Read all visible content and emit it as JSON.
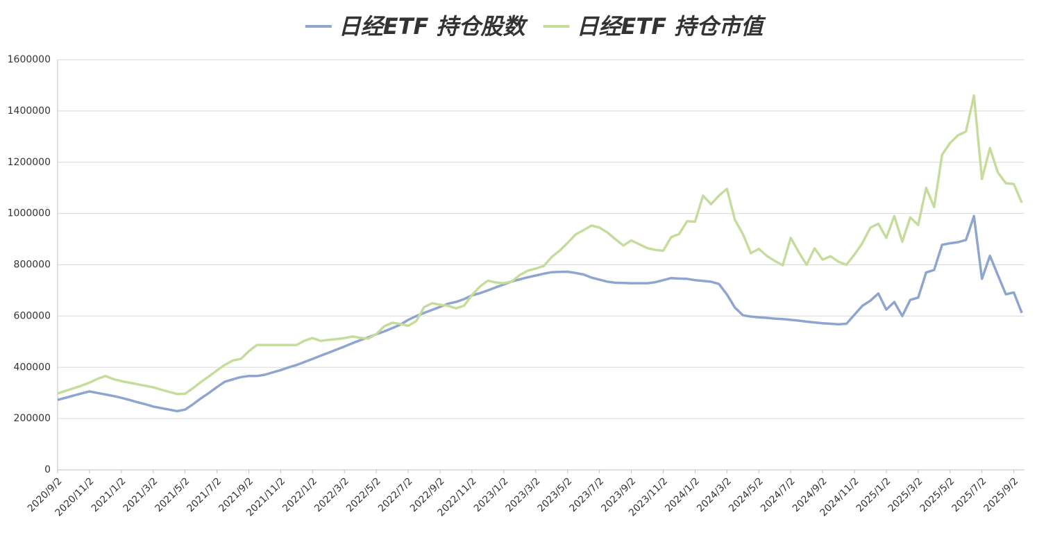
{
  "chart_data": {
    "type": "line",
    "categories": [
      "2020/9/2",
      null,
      null,
      null,
      "2020/11/2",
      null,
      null,
      null,
      "2021/1/2",
      null,
      null,
      null,
      "2021/3/2",
      null,
      null,
      null,
      "2021/5/2",
      null,
      null,
      null,
      "2021/7/2",
      null,
      null,
      null,
      "2021/9/2",
      null,
      null,
      null,
      "2021/11/2",
      null,
      null,
      null,
      "2022/1/2",
      null,
      null,
      null,
      "2022/3/2",
      null,
      null,
      null,
      "2022/5/2",
      null,
      null,
      null,
      "2022/7/2",
      null,
      null,
      null,
      "2022/9/2",
      null,
      null,
      null,
      "2022/11/2",
      null,
      null,
      null,
      "2023/1/2",
      null,
      null,
      null,
      "2023/3/2",
      null,
      null,
      null,
      "2023/5/2",
      null,
      null,
      null,
      "2023/7/2",
      null,
      null,
      null,
      "2023/9/2",
      null,
      null,
      null,
      "2023/11/2",
      null,
      null,
      null,
      "2024/1/2",
      null,
      null,
      null,
      "2024/3/2",
      null,
      null,
      null,
      "2024/5/2",
      null,
      null,
      null,
      "2024/7/2",
      null,
      null,
      null,
      "2024/9/2",
      null,
      null,
      null,
      "2024/11/2",
      null,
      null,
      null,
      "2025/1/2",
      null,
      null,
      null,
      "2025/3/2",
      null,
      null,
      null,
      "2025/5/2",
      null,
      null,
      null,
      "2025/7/2",
      null,
      null,
      null,
      "2025/9/2",
      null
    ],
    "series": [
      {
        "name": "日经ETF 持仓股数",
        "color": "#8ea5cf",
        "values": [
          273000,
          281000,
          290000,
          298000,
          306000,
          300000,
          294000,
          288000,
          281000,
          273000,
          264000,
          256000,
          247000,
          241000,
          235000,
          229000,
          235000,
          256000,
          279000,
          300000,
          323000,
          344000,
          353000,
          362000,
          366000,
          366000,
          371000,
          380000,
          389000,
          400000,
          409000,
          421000,
          433000,
          445000,
          457000,
          469000,
          481000,
          494000,
          506000,
          517000,
          529000,
          540000,
          553000,
          566000,
          585000,
          600000,
          612000,
          624000,
          636000,
          648000,
          655000,
          666000,
          681000,
          689000,
          700000,
          712000,
          723000,
          735000,
          743000,
          751000,
          758000,
          765000,
          771000,
          772000,
          773000,
          768000,
          762000,
          750000,
          742000,
          734000,
          730000,
          729000,
          728000,
          728000,
          728000,
          732000,
          740000,
          748000,
          746000,
          745000,
          740000,
          737000,
          734000,
          725000,
          684000,
          633000,
          603000,
          598000,
          595000,
          593000,
          590000,
          588000,
          585000,
          582000,
          578000,
          575000,
          572000,
          570000,
          568000,
          570000,
          605000,
          640000,
          660000,
          688000,
          625000,
          655000,
          600000,
          663000,
          672000,
          770000,
          780000,
          878000,
          884000,
          888000,
          897000,
          990000,
          745000,
          835000,
          760000,
          685000,
          692000,
          612000
        ]
      },
      {
        "name": "日经ETF 持仓市值",
        "color": "#c6dc9c",
        "values": [
          298000,
          308000,
          318000,
          328000,
          340000,
          355000,
          366000,
          354000,
          346000,
          340000,
          334000,
          328000,
          322000,
          313000,
          304000,
          296000,
          297000,
          319000,
          343000,
          365000,
          388000,
          410000,
          427000,
          433000,
          463000,
          487000,
          487000,
          487000,
          487000,
          487000,
          487000,
          504000,
          514000,
          503000,
          507000,
          510000,
          514000,
          520000,
          515000,
          512000,
          530000,
          560000,
          574000,
          569000,
          562000,
          580000,
          635000,
          650000,
          644000,
          640000,
          630000,
          640000,
          682000,
          715000,
          738000,
          731000,
          728000,
          735000,
          760000,
          777000,
          785000,
          795000,
          830000,
          855000,
          885000,
          918000,
          935000,
          953000,
          945000,
          926000,
          900000,
          875000,
          895000,
          880000,
          865000,
          858000,
          855000,
          908000,
          920000,
          970000,
          968000,
          1070000,
          1036000,
          1070000,
          1096000,
          975000,
          920000,
          845000,
          862000,
          835000,
          815000,
          798000,
          905000,
          850000,
          800000,
          864000,
          820000,
          833000,
          812000,
          800000,
          840000,
          885000,
          945000,
          960000,
          905000,
          990000,
          890000,
          985000,
          955000,
          1100000,
          1025000,
          1230000,
          1275000,
          1305000,
          1320000,
          1460000,
          1135000,
          1255000,
          1160000,
          1118000,
          1115000,
          1042000
        ]
      }
    ],
    "ylim": [
      0,
      1600000
    ],
    "yticks": [
      0,
      200000,
      400000,
      600000,
      800000,
      1000000,
      1200000,
      1400000,
      1600000
    ],
    "grid": true,
    "legend": "top"
  }
}
